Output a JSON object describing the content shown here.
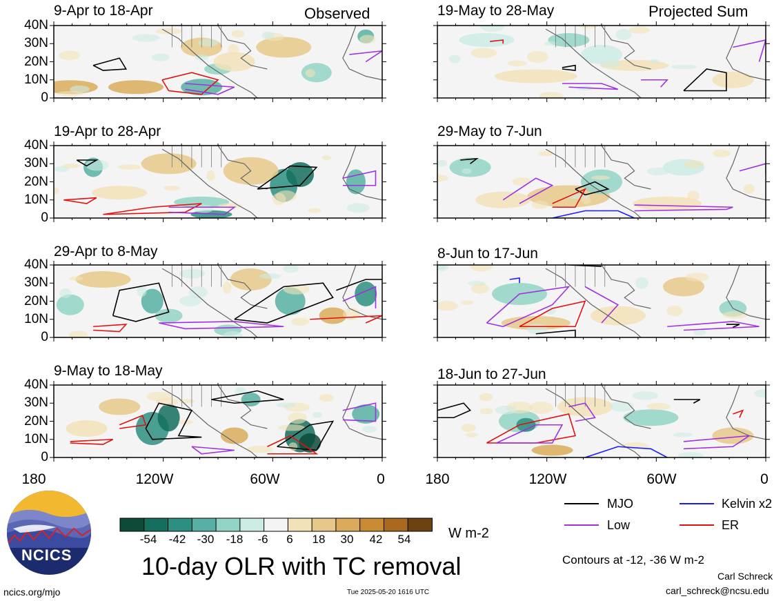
{
  "chart_data": {
    "type": "heatmap",
    "title": "10-day OLR with TC removal",
    "units": "W m-2",
    "x_ticks": [
      "180",
      "120W",
      "60W",
      "0"
    ],
    "y_ticks": [
      "40N",
      "30N",
      "20N",
      "10N",
      "0"
    ],
    "xlim": [
      -180,
      0
    ],
    "ylim": [
      0,
      40
    ],
    "colorbar": {
      "ticks": [
        "-54",
        "-42",
        "-30",
        "-18",
        "-6",
        "6",
        "18",
        "30",
        "42",
        "54"
      ],
      "colors": [
        "#0d4a3a",
        "#146f5e",
        "#2c8f80",
        "#57b0a3",
        "#93d3c6",
        "#cdebe5",
        "#f4f4f4",
        "#f2e2b8",
        "#e6c98a",
        "#d9ab5a",
        "#c98b33",
        "#a8691e",
        "#6e4210"
      ]
    },
    "contours_note": "Contours at -12, -36 W m-2",
    "legend": [
      {
        "label": "MJO",
        "color": "#000000"
      },
      {
        "label": "Kelvin x2",
        "color": "#1a1aff"
      },
      {
        "label": "Low",
        "color": "#a030e0"
      },
      {
        "label": "ER",
        "color": "#e01010"
      }
    ],
    "panels": [
      {
        "title": "9-Apr to 18-Apr",
        "corner": "Observed"
      },
      {
        "title": "19-Apr to 28-Apr",
        "corner": ""
      },
      {
        "title": "29-Apr to 8-May",
        "corner": ""
      },
      {
        "title": "9-May to 18-May",
        "corner": ""
      },
      {
        "title": "19-May to 28-May",
        "corner": "Projected Sum"
      },
      {
        "title": "29-May to 7-Jun",
        "corner": ""
      },
      {
        "title": "8-Jun to 17-Jun",
        "corner": ""
      },
      {
        "title": "18-Jun to 27-Jun",
        "corner": ""
      }
    ]
  },
  "footer": {
    "logo_text": "NCICS",
    "url": "ncics.org/mjo",
    "timestamp": "Tue 2025-05-20 1616 UTC",
    "author": "Carl Schreck",
    "email": "carl_schreck@ncsu.edu"
  }
}
